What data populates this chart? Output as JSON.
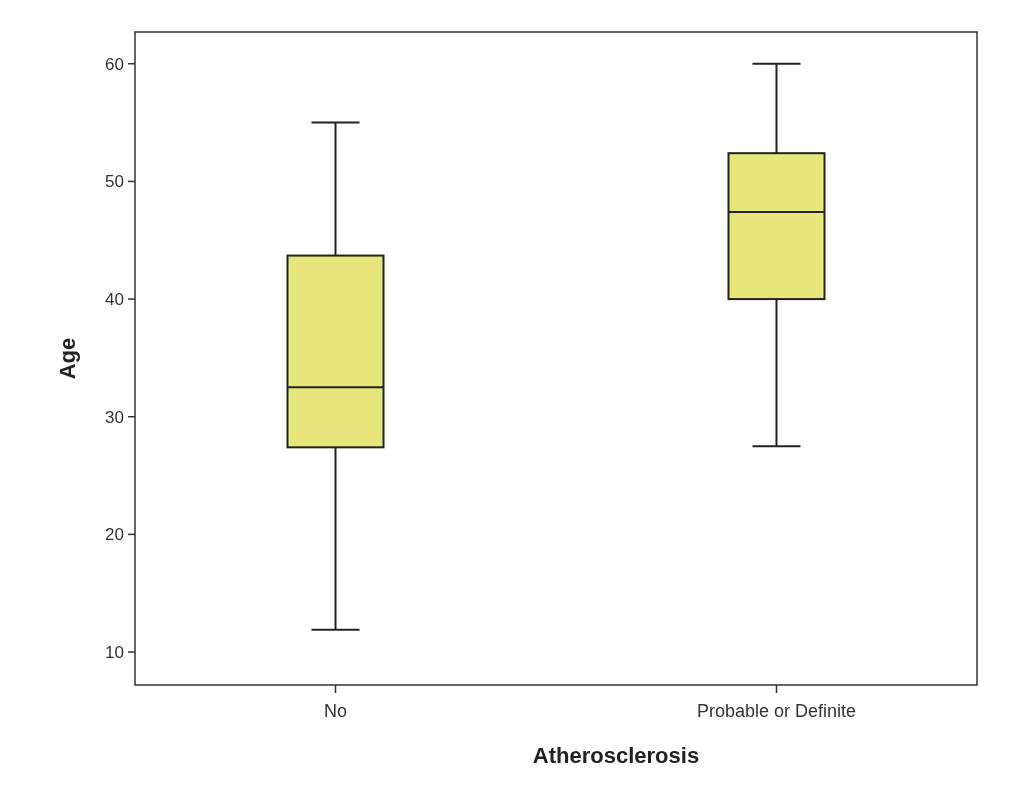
{
  "chart_data": {
    "type": "box",
    "xlabel": "Atherosclerosis",
    "ylabel": "Age",
    "categories": [
      "No",
      "Probable or Definite"
    ],
    "boxes": [
      {
        "low": 11.9,
        "q1": 27.4,
        "median": 32.5,
        "q3": 43.7,
        "high": 55
      },
      {
        "low": 27.5,
        "q1": 40,
        "median": 47.4,
        "q3": 52.4,
        "high": 60
      }
    ],
    "color": "#e6e67a",
    "ylim": [
      7.2,
      62.7
    ],
    "yticks": [
      10,
      20,
      30,
      40,
      50,
      60
    ],
    "grid": false
  }
}
